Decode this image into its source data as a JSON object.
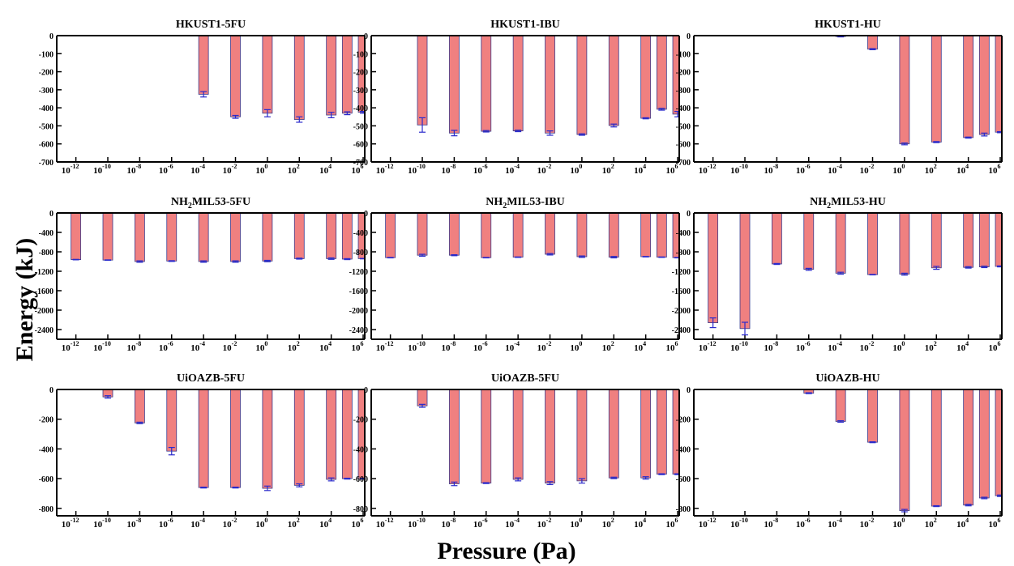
{
  "figure": {
    "ylabel": "Energy (kJ)",
    "xlabel": "Pressure (Pa)",
    "bar_color": "#f08080",
    "bar_edge_color": "#3a3a8c",
    "errorbar_color": "#2a2acc",
    "axis_color": "#000000"
  },
  "chart_data": [
    {
      "type": "bar",
      "title": "HKUST1-5FU",
      "ylim": [
        -700,
        0
      ],
      "yticks": [
        0,
        -100,
        -200,
        -300,
        -400,
        -500,
        -600,
        -700
      ],
      "xlim": [
        -13.2,
        6.1
      ],
      "xticks": [
        -12,
        -10,
        -8,
        -6,
        -4,
        -2,
        0,
        2,
        4,
        6
      ],
      "x": [
        -4,
        -2,
        0,
        2,
        4,
        5,
        6
      ],
      "values": [
        -325,
        -450,
        -430,
        -465,
        -440,
        -430,
        -425
      ],
      "errors": [
        15,
        8,
        20,
        15,
        15,
        8,
        5
      ]
    },
    {
      "type": "bar",
      "title": "HKUST1-IBU",
      "ylim": [
        -700,
        0
      ],
      "yticks": [
        0,
        -100,
        -200,
        -300,
        -400,
        -500,
        -600,
        -700
      ],
      "xlim": [
        -13.2,
        6.1
      ],
      "xticks": [
        -12,
        -10,
        -8,
        -6,
        -4,
        -2,
        0,
        2,
        4,
        6
      ],
      "x": [
        -10,
        -8,
        -6,
        -4,
        -2,
        0,
        2,
        4,
        5,
        6
      ],
      "values": [
        -495,
        -540,
        -530,
        -528,
        -540,
        -548,
        -498,
        -458,
        -408,
        -435
      ],
      "errors": [
        40,
        15,
        4,
        4,
        12,
        4,
        8,
        3,
        5,
        15
      ]
    },
    {
      "type": "bar",
      "title": "HKUST1-HU",
      "ylim": [
        -700,
        0
      ],
      "yticks": [
        0,
        -100,
        -200,
        -300,
        -400,
        -500,
        -600,
        -700
      ],
      "xlim": [
        -13.2,
        6.1
      ],
      "xticks": [
        -12,
        -10,
        -8,
        -6,
        -4,
        -2,
        0,
        2,
        4,
        6
      ],
      "x": [
        -4,
        -2,
        0,
        2,
        4,
        5,
        6
      ],
      "values": [
        -5,
        -75,
        -600,
        -590,
        -565,
        -548,
        -535
      ],
      "errors": [
        2,
        3,
        5,
        3,
        3,
        8,
        3
      ]
    },
    {
      "type": "bar",
      "title_main": "NH",
      "title_sub": "2",
      "title_rest": "MIL53-5FU",
      "ylim": [
        -2600,
        0
      ],
      "yticks": [
        0,
        -400,
        -800,
        -1200,
        -1600,
        -2000,
        -2400
      ],
      "xlim": [
        -13.2,
        6.1
      ],
      "xticks": [
        -12,
        -10,
        -8,
        -6,
        -4,
        -2,
        0,
        2,
        4,
        6
      ],
      "x": [
        -12,
        -10,
        -8,
        -6,
        -4,
        -2,
        0,
        2,
        4,
        5,
        6
      ],
      "values": [
        -960,
        -970,
        -1000,
        -990,
        -1000,
        -1000,
        -990,
        -940,
        -940,
        -950,
        -940
      ],
      "errors": [
        5,
        5,
        15,
        8,
        15,
        15,
        15,
        10,
        15,
        10,
        5
      ]
    },
    {
      "type": "bar",
      "title_main": "NH",
      "title_sub": "2",
      "title_rest": "MIL53-IBU",
      "ylim": [
        -2600,
        0
      ],
      "yticks": [
        0,
        -400,
        -800,
        -1200,
        -1600,
        -2000,
        -2400
      ],
      "xlim": [
        -13.2,
        6.1
      ],
      "xticks": [
        -12,
        -10,
        -8,
        -6,
        -4,
        -2,
        0,
        2,
        4,
        6
      ],
      "x": [
        -12,
        -10,
        -8,
        -6,
        -4,
        -2,
        0,
        2,
        4,
        5,
        6
      ],
      "values": [
        -920,
        -870,
        -870,
        -920,
        -910,
        -850,
        -900,
        -910,
        -900,
        -910,
        -920
      ],
      "errors": [
        5,
        20,
        10,
        5,
        5,
        15,
        15,
        15,
        5,
        5,
        5
      ]
    },
    {
      "type": "bar",
      "title_main": "NH",
      "title_sub": "2",
      "title_rest": "MIL53-HU",
      "ylim": [
        -2600,
        0
      ],
      "yticks": [
        0,
        -400,
        -800,
        -1200,
        -1600,
        -2000,
        -2400
      ],
      "xlim": [
        -13.2,
        6.1
      ],
      "xticks": [
        -12,
        -10,
        -8,
        -6,
        -4,
        -2,
        0,
        2,
        4,
        6
      ],
      "x": [
        -12,
        -10,
        -8,
        -6,
        -4,
        -2,
        0,
        2,
        4,
        5,
        6
      ],
      "values": [
        -2260,
        -2380,
        -1050,
        -1160,
        -1240,
        -1270,
        -1260,
        -1130,
        -1120,
        -1110,
        -1100
      ],
      "errors": [
        100,
        130,
        10,
        20,
        20,
        5,
        20,
        30,
        15,
        15,
        10
      ]
    },
    {
      "type": "bar",
      "title": "UiOAZB-5FU",
      "ylim": [
        -850,
        0
      ],
      "yticks": [
        0,
        -200,
        -400,
        -600,
        -800
      ],
      "xlim": [
        -13.2,
        6.1
      ],
      "xticks": [
        -12,
        -10,
        -8,
        -6,
        -4,
        -2,
        0,
        2,
        4,
        6
      ],
      "x": [
        -10,
        -8,
        -6,
        -4,
        -2,
        0,
        2,
        4,
        5,
        6
      ],
      "values": [
        -50,
        -225,
        -415,
        -660,
        -660,
        -665,
        -645,
        -605,
        -600,
        -600
      ],
      "errors": [
        8,
        5,
        25,
        3,
        3,
        15,
        10,
        10,
        3,
        3
      ]
    },
    {
      "type": "bar",
      "title": "UiOAZB-5FU",
      "ylim": [
        -850,
        0
      ],
      "yticks": [
        0,
        -200,
        -400,
        -600,
        -800
      ],
      "xlim": [
        -13.2,
        6.1
      ],
      "xticks": [
        -12,
        -10,
        -8,
        -6,
        -4,
        -2,
        0,
        2,
        4,
        6
      ],
      "x": [
        -10,
        -8,
        -6,
        -4,
        -2,
        0,
        2,
        4,
        5,
        6
      ],
      "values": [
        -110,
        -635,
        -630,
        -605,
        -630,
        -615,
        -595,
        -595,
        -570,
        -570
      ],
      "errors": [
        10,
        12,
        3,
        10,
        10,
        15,
        5,
        8,
        3,
        3
      ]
    },
    {
      "type": "bar",
      "title": "UiOAZB-HU",
      "ylim": [
        -850,
        0
      ],
      "yticks": [
        0,
        -200,
        -400,
        -600,
        -800
      ],
      "xlim": [
        -13.2,
        6.1
      ],
      "xticks": [
        -12,
        -10,
        -8,
        -6,
        -4,
        -2,
        0,
        2,
        4,
        6
      ],
      "x": [
        -6,
        -4,
        -2,
        0,
        2,
        4,
        5,
        6
      ],
      "values": [
        -25,
        -215,
        -355,
        -815,
        -785,
        -778,
        -730,
        -715
      ],
      "errors": [
        3,
        5,
        3,
        8,
        3,
        5,
        5,
        5
      ]
    }
  ]
}
